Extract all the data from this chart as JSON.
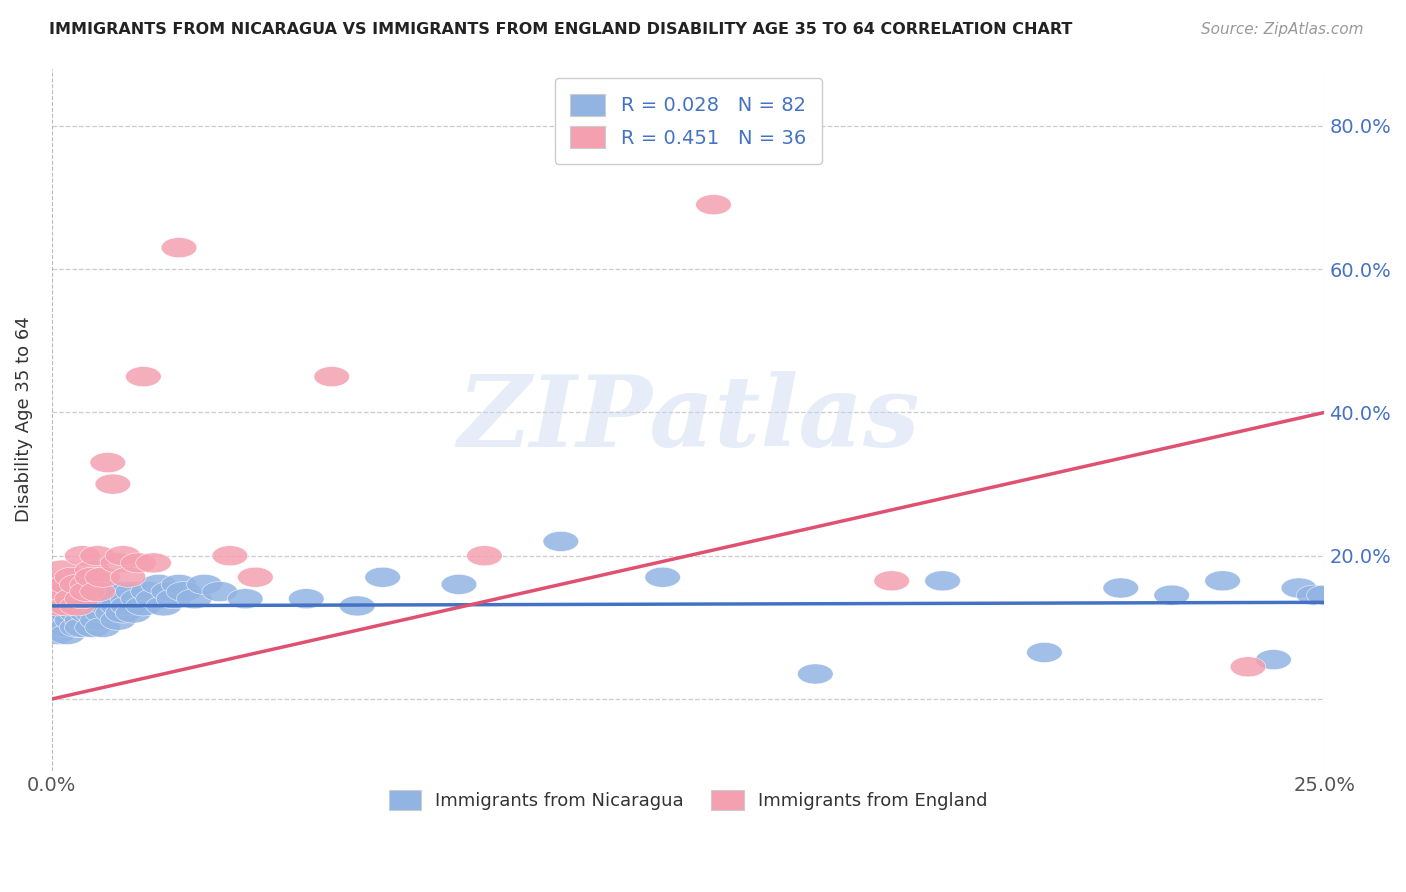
{
  "title": "IMMIGRANTS FROM NICARAGUA VS IMMIGRANTS FROM ENGLAND DISABILITY AGE 35 TO 64 CORRELATION CHART",
  "source": "Source: ZipAtlas.com",
  "ylabel": "Disability Age 35 to 64",
  "x_min": 0.0,
  "x_max": 0.25,
  "y_min": -0.1,
  "y_max": 0.88,
  "nicaragua_R": 0.028,
  "nicaragua_N": 82,
  "england_R": 0.451,
  "england_N": 36,
  "color_nicaragua": "#92b4e3",
  "color_england": "#f4a0b0",
  "color_blue_text": "#4472c4",
  "color_pink_text": "#e05070",
  "nicaragua_scatter_x": [
    0.0005,
    0.001,
    0.001,
    0.001,
    0.001,
    0.002,
    0.002,
    0.002,
    0.002,
    0.002,
    0.003,
    0.003,
    0.003,
    0.003,
    0.003,
    0.004,
    0.004,
    0.004,
    0.004,
    0.005,
    0.005,
    0.005,
    0.005,
    0.006,
    0.006,
    0.006,
    0.006,
    0.007,
    0.007,
    0.007,
    0.007,
    0.008,
    0.008,
    0.008,
    0.009,
    0.009,
    0.009,
    0.01,
    0.01,
    0.01,
    0.011,
    0.011,
    0.012,
    0.012,
    0.013,
    0.013,
    0.014,
    0.014,
    0.015,
    0.015,
    0.016,
    0.016,
    0.017,
    0.018,
    0.019,
    0.02,
    0.021,
    0.022,
    0.023,
    0.024,
    0.025,
    0.026,
    0.028,
    0.03,
    0.033,
    0.038,
    0.05,
    0.06,
    0.065,
    0.08,
    0.1,
    0.12,
    0.15,
    0.175,
    0.195,
    0.21,
    0.22,
    0.23,
    0.24,
    0.245,
    0.248,
    0.25
  ],
  "nicaragua_scatter_y": [
    0.13,
    0.14,
    0.11,
    0.09,
    0.16,
    0.13,
    0.1,
    0.15,
    0.12,
    0.14,
    0.13,
    0.1,
    0.15,
    0.12,
    0.09,
    0.14,
    0.11,
    0.13,
    0.16,
    0.13,
    0.1,
    0.15,
    0.12,
    0.14,
    0.11,
    0.13,
    0.1,
    0.14,
    0.12,
    0.15,
    0.13,
    0.12,
    0.14,
    0.1,
    0.13,
    0.15,
    0.11,
    0.14,
    0.12,
    0.1,
    0.15,
    0.13,
    0.12,
    0.14,
    0.13,
    0.11,
    0.15,
    0.12,
    0.14,
    0.13,
    0.15,
    0.12,
    0.14,
    0.13,
    0.15,
    0.14,
    0.16,
    0.13,
    0.15,
    0.14,
    0.16,
    0.15,
    0.14,
    0.16,
    0.15,
    0.14,
    0.14,
    0.13,
    0.17,
    0.16,
    0.22,
    0.17,
    0.035,
    0.165,
    0.065,
    0.155,
    0.145,
    0.165,
    0.055,
    0.155,
    0.145,
    0.145
  ],
  "england_scatter_x": [
    0.0005,
    0.001,
    0.001,
    0.002,
    0.002,
    0.003,
    0.003,
    0.004,
    0.004,
    0.005,
    0.005,
    0.006,
    0.006,
    0.007,
    0.007,
    0.008,
    0.008,
    0.009,
    0.009,
    0.01,
    0.011,
    0.012,
    0.013,
    0.014,
    0.015,
    0.017,
    0.018,
    0.02,
    0.025,
    0.035,
    0.04,
    0.055,
    0.085,
    0.13,
    0.165,
    0.235
  ],
  "england_scatter_y": [
    0.14,
    0.16,
    0.13,
    0.15,
    0.18,
    0.13,
    0.16,
    0.14,
    0.17,
    0.13,
    0.16,
    0.14,
    0.2,
    0.16,
    0.15,
    0.18,
    0.17,
    0.15,
    0.2,
    0.17,
    0.33,
    0.3,
    0.19,
    0.2,
    0.17,
    0.19,
    0.45,
    0.19,
    0.63,
    0.2,
    0.17,
    0.45,
    0.2,
    0.69,
    0.165,
    0.045
  ],
  "legend_labels": [
    "Immigrants from Nicaragua",
    "Immigrants from England"
  ],
  "watermark": "ZIPatlas",
  "ytick_values": [
    0.0,
    0.2,
    0.4,
    0.6,
    0.8
  ],
  "ytick_labels": [
    "",
    "20.0%",
    "40.0%",
    "60.0%",
    "80.0%"
  ],
  "xtick_values": [
    0.0,
    0.25
  ],
  "xtick_labels": [
    "0.0%",
    "25.0%"
  ],
  "eng_trend_y0": 0.0,
  "eng_trend_y1": 0.4,
  "nic_trend_y0": 0.13,
  "nic_trend_y1": 0.135
}
